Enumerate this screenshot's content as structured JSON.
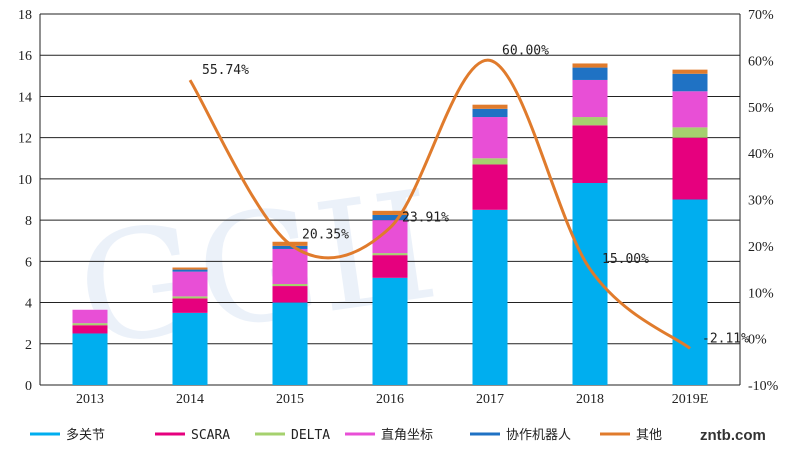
{
  "chart_data": {
    "type": "bar",
    "stacked": true,
    "categories": [
      "2013",
      "2014",
      "2015",
      "2016",
      "2017",
      "2018",
      "2019E"
    ],
    "series": [
      {
        "name": "多关节",
        "color": "#00aeef",
        "values": [
          2.5,
          3.5,
          4.0,
          5.2,
          8.5,
          9.8,
          9.0
        ]
      },
      {
        "name": "SCARA",
        "color": "#e6007e",
        "values": [
          0.4,
          0.7,
          0.8,
          1.1,
          2.2,
          2.8,
          3.0
        ]
      },
      {
        "name": "DELTA",
        "color": "#a5d16e",
        "values": [
          0.1,
          0.1,
          0.1,
          0.1,
          0.3,
          0.4,
          0.5
        ]
      },
      {
        "name": "直角坐标",
        "color": "#e84fd6",
        "values": [
          0.65,
          1.2,
          1.7,
          1.6,
          2.0,
          1.8,
          1.75
        ]
      },
      {
        "name": "协作机器人",
        "color": "#1f72c4",
        "values": [
          0,
          0.1,
          0.15,
          0.25,
          0.4,
          0.6,
          0.85
        ]
      },
      {
        "name": "其他",
        "color": "#e07b2c",
        "values": [
          0,
          0.1,
          0.2,
          0.2,
          0.2,
          0.2,
          0.2
        ]
      }
    ],
    "growth_line": {
      "color": "#e07b2c",
      "categories": [
        "2014",
        "2015",
        "2016",
        "2017",
        "2018",
        "2019E"
      ],
      "values": [
        55.74,
        20.35,
        23.91,
        60.0,
        15.0,
        -2.11
      ],
      "labels": [
        "55.74%",
        "20.35%",
        "23.91%",
        "60.00%",
        "15.00%",
        "-2.11%"
      ]
    },
    "y_left": {
      "ylim": [
        0,
        18
      ],
      "ticks": [
        "0",
        "2",
        "4",
        "6",
        "8",
        "10",
        "12",
        "14",
        "16",
        "18"
      ]
    },
    "y_right": {
      "ylim": [
        -10,
        70
      ],
      "ticks": [
        "-10%",
        "0%",
        "10%",
        "20%",
        "30%",
        "40%",
        "50%",
        "60%",
        "70%"
      ]
    },
    "grid": true,
    "legend_position": "bottom"
  },
  "watermark": "GGII",
  "logo_text": "zntb.com"
}
